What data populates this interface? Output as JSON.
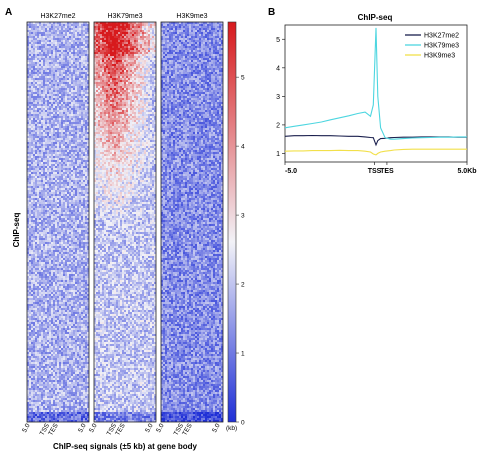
{
  "panels": {
    "a_label": "A",
    "b_label": "B"
  },
  "heatmap": {
    "type": "heatmap",
    "ylabel": "ChIP-seq",
    "xlabel": "ChIP-seq signals (±5 kb) at gene body",
    "columns": [
      {
        "name": "H3K27me2",
        "intensity": 0.3,
        "top_enrichment": 0.0
      },
      {
        "name": "H3K79me3",
        "intensity": 0.35,
        "top_enrichment": 1.0
      },
      {
        "name": "H3K9me3",
        "intensity": 0.22,
        "top_enrichment": 0.0
      }
    ],
    "xticks": [
      "5.0",
      "TSS",
      "TES",
      "5.0"
    ],
    "colorbar": {
      "min": 0,
      "max": 5.8,
      "ticks": [
        "0",
        "1",
        "2",
        "3",
        "4",
        "5"
      ],
      "unit_label": "(kb)",
      "low_color": "#1f2fd6",
      "mid_color": "#f2f2f7",
      "high_color": "#d7191c"
    }
  },
  "chart_data": {
    "type": "line",
    "title": "ChIP-seq",
    "x": [
      -5.0,
      -4.5,
      -4.0,
      -3.5,
      -3.0,
      -2.5,
      -2.0,
      -1.5,
      -1.0,
      -0.6,
      -0.3,
      -0.15,
      0.0,
      0.1,
      0.25,
      0.5,
      0.8,
      1.0,
      1.5,
      2.0,
      2.5,
      3.0,
      3.5,
      4.0,
      4.5,
      5.0
    ],
    "xticks": [
      "-5.0",
      "TSS",
      "TES",
      "5.0Kb"
    ],
    "yticks": [
      "1",
      "2",
      "3",
      "4",
      "5"
    ],
    "ylim": [
      0.7,
      5.5
    ],
    "series": [
      {
        "name": "H3K27me2",
        "color": "#1a1f4d",
        "values": [
          1.6,
          1.62,
          1.62,
          1.63,
          1.62,
          1.62,
          1.61,
          1.6,
          1.6,
          1.58,
          1.56,
          1.55,
          1.3,
          1.45,
          1.52,
          1.53,
          1.55,
          1.56,
          1.57,
          1.57,
          1.58,
          1.58,
          1.58,
          1.58,
          1.57,
          1.57
        ]
      },
      {
        "name": "H3K79me3",
        "color": "#4dd6e0",
        "values": [
          1.9,
          1.95,
          2.0,
          2.05,
          2.1,
          2.18,
          2.25,
          2.32,
          2.4,
          2.45,
          2.3,
          2.7,
          5.4,
          3.0,
          1.9,
          1.55,
          1.5,
          1.5,
          1.52,
          1.54,
          1.55,
          1.56,
          1.57,
          1.57,
          1.58,
          1.58
        ]
      },
      {
        "name": "H3K9me3",
        "color": "#f2e04a",
        "values": [
          1.08,
          1.09,
          1.09,
          1.1,
          1.1,
          1.1,
          1.11,
          1.1,
          1.1,
          1.08,
          1.05,
          0.98,
          0.95,
          1.0,
          1.05,
          1.08,
          1.1,
          1.12,
          1.14,
          1.15,
          1.15,
          1.15,
          1.15,
          1.15,
          1.15,
          1.15
        ]
      }
    ],
    "legend_position": "top-right"
  }
}
